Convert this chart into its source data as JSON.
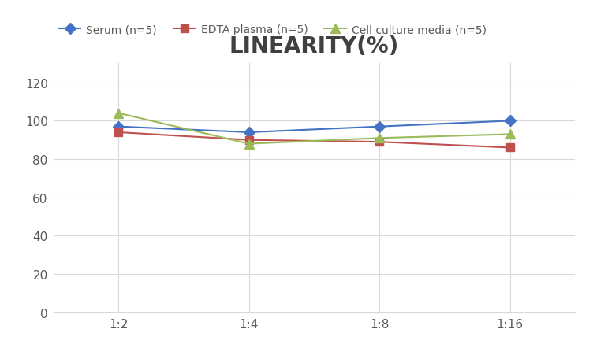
{
  "title": "LINEARITY(%)",
  "x_labels": [
    "1:2",
    "1:4",
    "1:8",
    "1:16"
  ],
  "x_positions": [
    0,
    1,
    2,
    3
  ],
  "series": [
    {
      "label": "Serum (n=5)",
      "values": [
        97,
        94,
        97,
        100
      ],
      "color": "#4472C4",
      "marker": "D",
      "markersize": 7
    },
    {
      "label": "EDTA plasma (n=5)",
      "values": [
        94,
        90,
        89,
        86
      ],
      "color": "#C0504D",
      "marker": "s",
      "markersize": 7
    },
    {
      "label": "Cell culture media (n=5)",
      "values": [
        104,
        88,
        91,
        93
      ],
      "color": "#9BBB59",
      "marker": "^",
      "markersize": 8
    }
  ],
  "ylim": [
    0,
    130
  ],
  "yticks": [
    0,
    20,
    40,
    60,
    80,
    100,
    120
  ],
  "background_color": "#ffffff",
  "grid_color": "#d9d9d9",
  "title_fontsize": 20,
  "title_color": "#404040",
  "legend_fontsize": 10,
  "tick_fontsize": 11,
  "tick_color": "#595959"
}
